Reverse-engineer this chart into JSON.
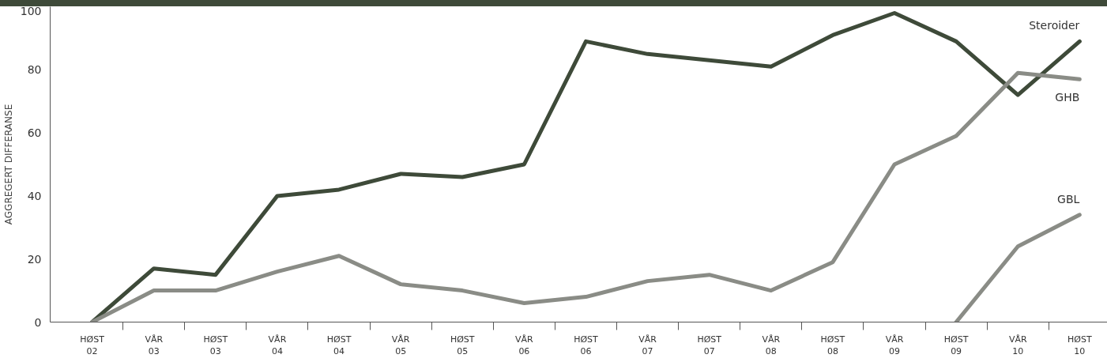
{
  "chart_data": {
    "type": "line",
    "ylabel": "AGGREGERT DIFFERANSE",
    "categories": [
      "HØST\n02",
      "VÅR\n03",
      "HØST\n03",
      "VÅR\n04",
      "HØST\n04",
      "VÅR\n05",
      "HØST\n05",
      "VÅR\n06",
      "HØST\n06",
      "VÅR\n07",
      "HØST\n07",
      "VÅR\n08",
      "HØST\n08",
      "VÅR\n09",
      "HØST\n09",
      "VÅR\n10",
      "HØST\n10"
    ],
    "series": [
      {
        "name": "Steroider",
        "color": "#3e4a39",
        "values": [
          0,
          17,
          15,
          40,
          42,
          47,
          46,
          50,
          89,
          85,
          83,
          81,
          91,
          98,
          89,
          72,
          89
        ]
      },
      {
        "name": "GHB",
        "color": "#8a8c86",
        "values": [
          0,
          10,
          10,
          16,
          21,
          12,
          10,
          6,
          8,
          13,
          15,
          10,
          19,
          50,
          59,
          79,
          77
        ]
      },
      {
        "name": "GBL",
        "color": "#8a8c86",
        "values": [
          null,
          null,
          null,
          null,
          null,
          null,
          null,
          null,
          null,
          null,
          null,
          null,
          null,
          null,
          0,
          24,
          34
        ]
      }
    ],
    "ylim": [
      0,
      100
    ],
    "yticks": [
      0,
      20,
      40,
      60,
      80,
      100
    ],
    "grid": false,
    "marker": "none",
    "line_style": "solid"
  }
}
